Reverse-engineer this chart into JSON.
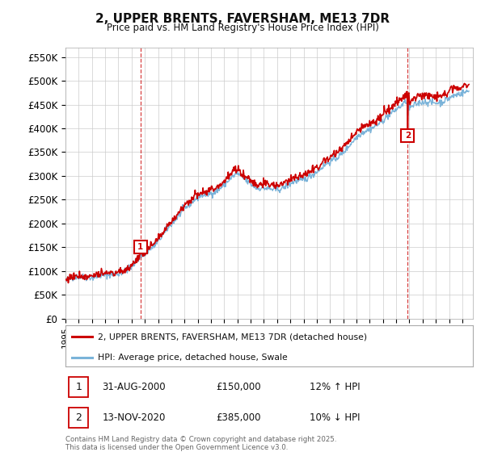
{
  "title": "2, UPPER BRENTS, FAVERSHAM, ME13 7DR",
  "subtitle": "Price paid vs. HM Land Registry's House Price Index (HPI)",
  "ylabel_ticks": [
    "£0",
    "£50K",
    "£100K",
    "£150K",
    "£200K",
    "£250K",
    "£300K",
    "£350K",
    "£400K",
    "£450K",
    "£500K",
    "£550K"
  ],
  "ytick_values": [
    0,
    50000,
    100000,
    150000,
    200000,
    250000,
    300000,
    350000,
    400000,
    450000,
    500000,
    550000
  ],
  "ylim": [
    0,
    570000
  ],
  "xlim_start": 1995.0,
  "xlim_end": 2025.8,
  "sale1_x": 2000.667,
  "sale1_y": 150000,
  "sale1_label": "1",
  "sale2_x": 2020.867,
  "sale2_y": 385000,
  "sale2_label": "2",
  "hpi_color": "#7ab3d9",
  "price_color": "#cc0000",
  "marker_border_color": "#cc0000",
  "legend_line1": "2, UPPER BRENTS, FAVERSHAM, ME13 7DR (detached house)",
  "legend_line2": "HPI: Average price, detached house, Swale",
  "annotation1_date": "31-AUG-2000",
  "annotation1_price": "£150,000",
  "annotation1_hpi": "12% ↑ HPI",
  "annotation2_date": "13-NOV-2020",
  "annotation2_price": "£385,000",
  "annotation2_hpi": "10% ↓ HPI",
  "footnote": "Contains HM Land Registry data © Crown copyright and database right 2025.\nThis data is licensed under the Open Government Licence v3.0.",
  "bg_color": "#ffffff",
  "plot_bg_color": "#ffffff",
  "grid_color": "#cccccc"
}
